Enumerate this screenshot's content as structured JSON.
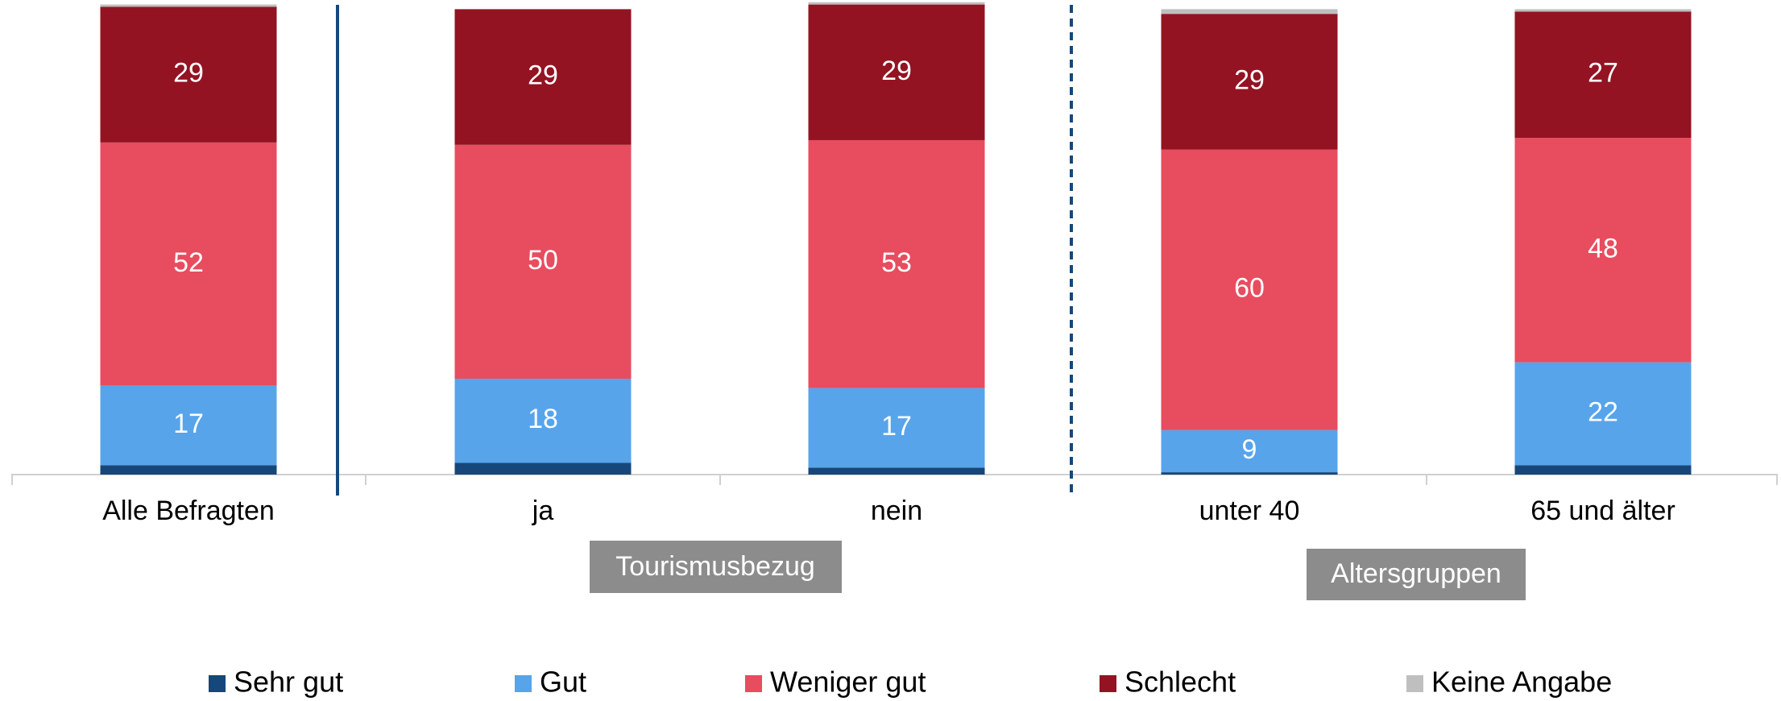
{
  "chart_data": {
    "type": "stacked_bar",
    "categories": [
      "Alle Befragten",
      "ja",
      "nein",
      "unter 40",
      "65 und älter"
    ],
    "groups": [
      "Tourismusbezug",
      "Altersgruppen"
    ],
    "ylim": [
      0,
      100
    ],
    "series": [
      {
        "name": "Sehr gut",
        "color": "#17477a",
        "show_labels": false,
        "values": [
          2,
          2.5,
          1.5,
          0.5,
          2
        ]
      },
      {
        "name": "Gut",
        "color": "#57a4eb",
        "show_labels": true,
        "values": [
          17,
          18,
          17,
          9,
          22
        ]
      },
      {
        "name": "Weniger gut",
        "color": "#e84c5f",
        "show_labels": true,
        "values": [
          52,
          50,
          53,
          60,
          48
        ]
      },
      {
        "name": "Schlecht",
        "color": "#931322",
        "show_labels": true,
        "values": [
          29,
          29,
          29,
          29,
          27
        ]
      },
      {
        "name": "Keine Angabe",
        "color": "#bfbfbf",
        "show_labels": false,
        "values": [
          0.5,
          0,
          0.5,
          1,
          0.5
        ]
      }
    ]
  }
}
